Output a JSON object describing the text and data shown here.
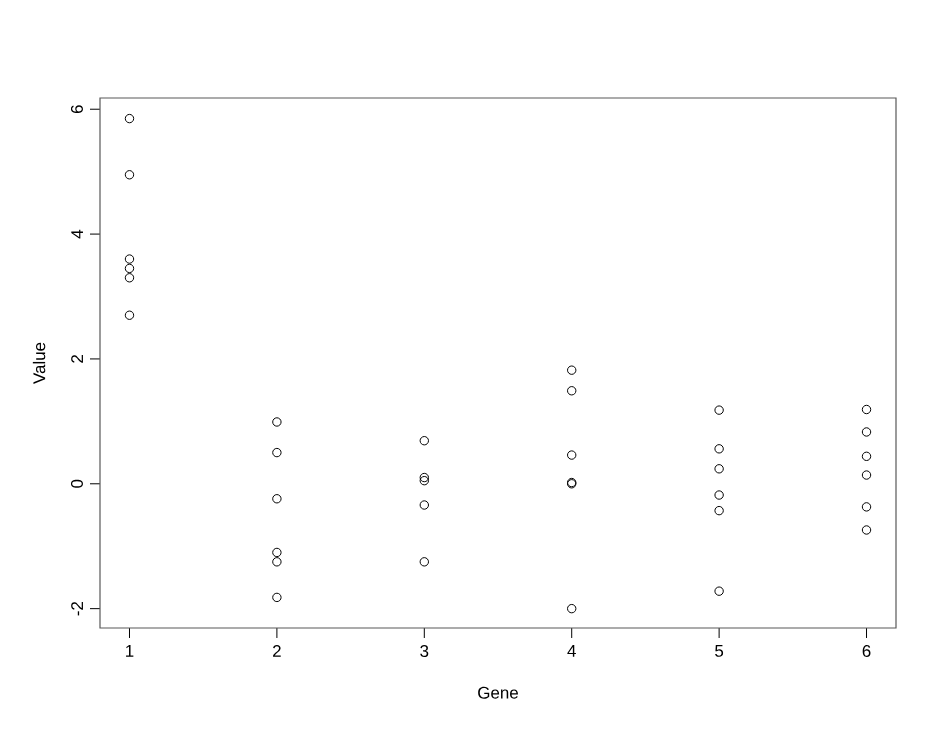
{
  "chart_data": {
    "type": "scatter",
    "xlabel": "Gene",
    "ylabel": "Value",
    "marker": "circle",
    "xlim": [
      0.8,
      6.2
    ],
    "ylim": [
      -2.31,
      6.18
    ],
    "xticks": [
      1,
      2,
      3,
      4,
      5,
      6
    ],
    "yticks": [
      -2,
      0,
      2,
      4,
      6
    ],
    "series": [
      {
        "color": "#000000",
        "x": [
          1,
          1,
          1,
          1,
          1,
          1,
          2,
          2,
          2,
          2,
          2,
          2,
          3,
          3,
          3,
          3,
          3,
          4,
          4,
          4,
          4,
          4,
          4,
          5,
          5,
          5,
          5,
          5,
          5,
          6,
          6,
          6,
          6,
          6,
          6
        ],
        "values": [
          5.85,
          4.95,
          3.6,
          3.45,
          3.3,
          2.7,
          0.99,
          0.5,
          -0.24,
          -1.1,
          -1.25,
          -1.82,
          0.69,
          0.1,
          0.05,
          -0.34,
          -1.25,
          1.82,
          1.49,
          0.46,
          0.02,
          0,
          -2.0,
          1.18,
          0.56,
          0.24,
          -0.18,
          -0.43,
          -1.72,
          1.19,
          0.83,
          0.44,
          0.14,
          -0.37,
          -0.74
        ]
      }
    ]
  }
}
